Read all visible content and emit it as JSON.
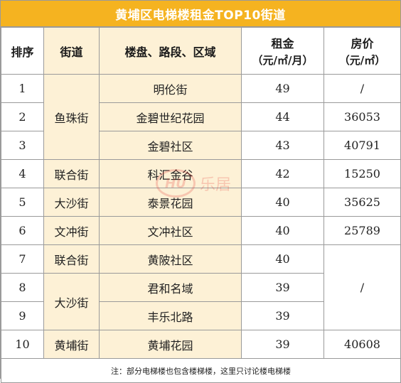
{
  "title": "黄埔区电梯楼租金TOP10街道",
  "headers": {
    "rank": "排序",
    "street": "街道",
    "property": "楼盘、路段、区域",
    "rent": "租金",
    "rent_unit": "（元/㎡/月）",
    "price": "房价",
    "price_unit": "（元/㎡）"
  },
  "rows": [
    {
      "rank": "1",
      "street": "鱼珠街",
      "property": "明伦街",
      "rent": "49",
      "price": "/"
    },
    {
      "rank": "2",
      "property": "金碧世纪花园",
      "rent": "44",
      "price": "36053"
    },
    {
      "rank": "3",
      "property": "金碧社区",
      "rent": "43",
      "price": "40791"
    },
    {
      "rank": "4",
      "street": "联合街",
      "property": "科汇金谷",
      "rent": "42",
      "price": "15250"
    },
    {
      "rank": "5",
      "street": "大沙街",
      "property": "泰景花园",
      "rent": "40",
      "price": "35625"
    },
    {
      "rank": "6",
      "street": "文冲街",
      "property": "文冲社区",
      "rent": "40",
      "price": "25789"
    },
    {
      "rank": "7",
      "street": "联合街",
      "property": "黄陂社区",
      "rent": "40",
      "price": "/"
    },
    {
      "rank": "8",
      "street": "大沙街",
      "property": "君和名域",
      "rent": "39"
    },
    {
      "rank": "9",
      "property": "丰乐北路",
      "rent": "39"
    },
    {
      "rank": "10",
      "street": "黄埔街",
      "property": "黄埔花园",
      "rent": "39",
      "price": "40608"
    }
  ],
  "note": "注：部分电梯楼也包含楼梯楼，这里只讨论楼电梯楼",
  "watermark": {
    "logo": "HU",
    "brand": "乐居"
  },
  "colors": {
    "title_bg": "#f5b320",
    "highlight_bg": "#fdf1d6",
    "border": "#9a9a9a"
  }
}
